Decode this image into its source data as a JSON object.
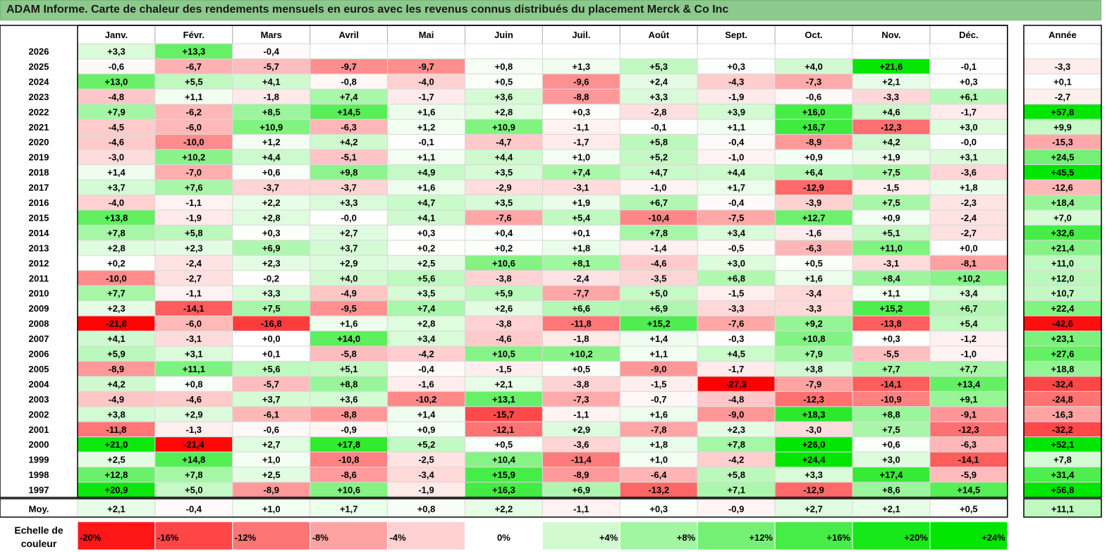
{
  "title": "ADAM Informe. Carte de chaleur des rendements mensuels en euros avec les revenus connus distribués du placement Merck & Co Inc",
  "chart_data": {
    "type": "heatmap",
    "title": "ADAM Informe. Carte de chaleur des rendements mensuels en euros avec les revenus connus distribués du placement Merck & Co Inc",
    "columns": [
      "Janv.",
      "Févr.",
      "Mars",
      "Avril",
      "Mai",
      "Juin",
      "Juil.",
      "Août",
      "Sept.",
      "Oct.",
      "Nov.",
      "Déc."
    ],
    "year_column_label": "Année",
    "rows": [
      {
        "label": "2026",
        "values": [
          "+3,3",
          "+13,3",
          "-0,4",
          "",
          "",
          "",
          "",
          "",
          "",
          "",
          "",
          ""
        ],
        "year": ""
      },
      {
        "label": "2025",
        "values": [
          "-0,6",
          "-6,7",
          "-5,7",
          "-9,7",
          "-9,7",
          "+0,8",
          "+1,3",
          "+5,3",
          "+0,3",
          "+4,0",
          "+21,6",
          "-0,1"
        ],
        "year": "-3,3"
      },
      {
        "label": "2024",
        "values": [
          "+13,0",
          "+5,5",
          "+4,1",
          "-0,8",
          "-4,0",
          "+0,5",
          "-9,6",
          "+2,4",
          "-4,3",
          "-7,3",
          "+2,1",
          "+0,3"
        ],
        "year": "+0,1"
      },
      {
        "label": "2023",
        "values": [
          "-4,8",
          "+1,1",
          "-1,8",
          "+7,4",
          "-1,7",
          "+3,6",
          "-8,8",
          "+3,3",
          "-1,9",
          "-0,6",
          "-3,3",
          "+6,1"
        ],
        "year": "-2,7"
      },
      {
        "label": "2022",
        "values": [
          "+7,9",
          "-6,2",
          "+8,5",
          "+14,5",
          "+1,6",
          "+2,8",
          "+0,3",
          "-2,8",
          "+3,9",
          "+16,0",
          "+4,6",
          "-1,7"
        ],
        "year": "+57,8"
      },
      {
        "label": "2021",
        "values": [
          "-4,5",
          "-6,0",
          "+10,9",
          "-6,3",
          "+1,2",
          "+10,9",
          "-1,1",
          "-0,1",
          "+1,1",
          "+16,7",
          "-12,3",
          "+3,0"
        ],
        "year": "+9,9"
      },
      {
        "label": "2020",
        "values": [
          "-4,6",
          "-10,0",
          "+1,2",
          "+4,2",
          "-0,1",
          "-4,7",
          "-1,7",
          "+5,8",
          "-0,4",
          "-8,9",
          "+4,2",
          "-0,0"
        ],
        "year": "-15,3"
      },
      {
        "label": "2019",
        "values": [
          "-3,0",
          "+10,2",
          "+4,4",
          "-5,1",
          "+1,1",
          "+4,4",
          "+1,0",
          "+5,2",
          "-1,0",
          "+0,9",
          "+1,9",
          "+3,1"
        ],
        "year": "+24,5"
      },
      {
        "label": "2018",
        "values": [
          "+1,4",
          "-7,0",
          "+0,6",
          "+9,8",
          "+4,9",
          "+3,5",
          "+7,4",
          "+4,7",
          "+4,4",
          "+6,4",
          "+7,5",
          "-3,6"
        ],
        "year": "+45,5"
      },
      {
        "label": "2017",
        "values": [
          "+3,7",
          "+7,6",
          "-3,7",
          "-3,7",
          "+1,6",
          "-2,9",
          "-3,1",
          "-1,0",
          "+1,7",
          "-12,9",
          "-1,5",
          "+1,8"
        ],
        "year": "-12,6"
      },
      {
        "label": "2016",
        "values": [
          "-4,0",
          "-1,1",
          "+2,2",
          "+3,3",
          "+4,7",
          "+3,5",
          "+1,9",
          "+6,7",
          "-0,4",
          "-3,9",
          "+7,5",
          "-2,3"
        ],
        "year": "+18,4"
      },
      {
        "label": "2015",
        "values": [
          "+13,8",
          "-1,9",
          "+2,8",
          "-0,0",
          "+4,1",
          "-7,6",
          "+5,4",
          "-10,4",
          "-7,5",
          "+12,7",
          "+0,9",
          "-2,4"
        ],
        "year": "+7,0"
      },
      {
        "label": "2014",
        "values": [
          "+7,8",
          "+5,8",
          "+0,3",
          "+2,7",
          "+0,3",
          "+0,4",
          "+0,1",
          "+7,8",
          "+3,4",
          "-1,6",
          "+5,1",
          "-2,7"
        ],
        "year": "+32,6"
      },
      {
        "label": "2013",
        "values": [
          "+2,8",
          "+2,3",
          "+6,9",
          "+3,7",
          "+0,2",
          "+0,2",
          "+1,8",
          "-1,4",
          "-0,5",
          "-6,3",
          "+11,0",
          "+0,0"
        ],
        "year": "+21,4"
      },
      {
        "label": "2012",
        "values": [
          "+0,2",
          "-2,4",
          "+2,3",
          "+2,9",
          "+2,5",
          "+10,6",
          "+8,1",
          "-4,6",
          "+3,0",
          "+0,5",
          "-3,1",
          "-8,1"
        ],
        "year": "+11,0"
      },
      {
        "label": "2011",
        "values": [
          "-10,0",
          "-2,7",
          "-0,2",
          "+4,0",
          "+5,6",
          "-3,8",
          "-2,4",
          "-3,5",
          "+6,8",
          "+1,6",
          "+8,4",
          "+10,2"
        ],
        "year": "+12,0"
      },
      {
        "label": "2010",
        "values": [
          "+7,7",
          "-1,1",
          "+3,3",
          "-4,9",
          "+3,5",
          "+5,9",
          "-7,7",
          "+5,0",
          "-1,5",
          "-3,4",
          "+1,1",
          "+3,4"
        ],
        "year": "+10,7"
      },
      {
        "label": "2009",
        "values": [
          "+2,3",
          "-14,1",
          "+7,5",
          "-9,5",
          "+7,4",
          "+2,6",
          "+6,6",
          "+6,9",
          "-3,3",
          "-3,3",
          "+15,2",
          "+6,7"
        ],
        "year": "+22,4"
      },
      {
        "label": "2008",
        "values": [
          "-21,8",
          "-6,0",
          "-16,8",
          "+1,6",
          "+2,8",
          "-3,8",
          "-11,8",
          "+15,2",
          "-7,6",
          "+9,2",
          "-13,8",
          "+5,4"
        ],
        "year": "-42,6"
      },
      {
        "label": "2007",
        "values": [
          "+4,1",
          "-3,1",
          "+0,0",
          "+14,0",
          "+3,4",
          "-4,6",
          "-1,8",
          "+1,4",
          "-0,3",
          "+10,8",
          "+0,3",
          "-1,2"
        ],
        "year": "+23,1"
      },
      {
        "label": "2006",
        "values": [
          "+5,9",
          "+3,1",
          "+0,1",
          "-5,8",
          "-4,2",
          "+10,5",
          "+10,2",
          "+1,1",
          "+4,5",
          "+7,9",
          "-5,5",
          "-1,0"
        ],
        "year": "+27,6"
      },
      {
        "label": "2005",
        "values": [
          "-8,9",
          "+11,1",
          "+5,6",
          "+5,1",
          "-0,4",
          "-1,5",
          "+0,5",
          "-9,0",
          "-1,7",
          "+3,8",
          "+7,7",
          "+7,7"
        ],
        "year": "+18,8"
      },
      {
        "label": "2004",
        "values": [
          "+4,2",
          "+0,8",
          "-5,7",
          "+8,8",
          "-1,6",
          "+2,1",
          "-3,8",
          "-1,5",
          "-27,3",
          "-7,9",
          "-14,1",
          "+13,4"
        ],
        "year": "-32,4"
      },
      {
        "label": "2003",
        "values": [
          "-4,9",
          "-4,6",
          "+3,7",
          "+3,6",
          "-10,2",
          "+13,1",
          "-7,3",
          "-0,7",
          "-4,8",
          "-12,3",
          "-10,9",
          "+9,1"
        ],
        "year": "-24,8"
      },
      {
        "label": "2002",
        "values": [
          "+3,8",
          "+2,9",
          "-6,1",
          "-8,8",
          "+1,4",
          "-15,7",
          "-1,1",
          "+1,6",
          "-9,0",
          "+18,3",
          "+8,8",
          "-9,1"
        ],
        "year": "-16,3"
      },
      {
        "label": "2001",
        "values": [
          "-11,8",
          "-1,3",
          "-0,6",
          "-0,9",
          "+0,9",
          "-12,1",
          "+2,9",
          "-7,8",
          "+2,3",
          "-3,0",
          "+7,5",
          "-12,3"
        ],
        "year": "-32,2"
      },
      {
        "label": "2000",
        "values": [
          "+21,0",
          "-21,4",
          "+2,7",
          "+17,8",
          "+5,2",
          "+0,5",
          "-3,6",
          "+1,8",
          "+7,8",
          "+26,0",
          "+0,6",
          "-6,3"
        ],
        "year": "+52,1"
      },
      {
        "label": "1999",
        "values": [
          "+2,5",
          "+14,8",
          "+1,0",
          "-10,8",
          "-2,5",
          "+10,4",
          "-11,4",
          "+1,0",
          "-4,2",
          "+24,4",
          "+3,0",
          "-14,1"
        ],
        "year": "+7,8"
      },
      {
        "label": "1998",
        "values": [
          "+12,8",
          "+7,8",
          "+2,5",
          "-8,6",
          "-3,4",
          "+15,9",
          "-8,9",
          "-6,4",
          "+5,8",
          "+3,3",
          "+17,4",
          "-5,9"
        ],
        "year": "+31,4"
      },
      {
        "label": "1997",
        "values": [
          "+20,9",
          "+5,0",
          "-8,9",
          "+10,6",
          "-1,9",
          "+16,3",
          "+6,9",
          "-13,2",
          "+7,1",
          "-12,9",
          "+8,6",
          "+14,5"
        ],
        "year": "+56,8"
      }
    ],
    "average_row": {
      "label": "Moy.",
      "values": [
        "+2,1",
        "-0,4",
        "+1,0",
        "+1,7",
        "+0,8",
        "+2,2",
        "-1,1",
        "+0,3",
        "-0,9",
        "+2,7",
        "+2,1",
        "+0,5"
      ],
      "year": "+11,1"
    },
    "color_scale": {
      "label_line1": "Echelle de",
      "label_line2": "couleur",
      "stops": [
        {
          "label": "-20%",
          "value": -20
        },
        {
          "label": "-16%",
          "value": -16
        },
        {
          "label": "-12%",
          "value": -12
        },
        {
          "label": "-8%",
          "value": -8
        },
        {
          "label": "-4%",
          "value": -4
        },
        {
          "label": "0%",
          "value": 0
        },
        {
          "label": "+4%",
          "value": 4
        },
        {
          "label": "+8%",
          "value": 8
        },
        {
          "label": "+12%",
          "value": 12
        },
        {
          "label": "+16%",
          "value": 16
        },
        {
          "label": "+20%",
          "value": 20
        },
        {
          "label": "+24%",
          "value": 24
        }
      ]
    }
  },
  "colors": {
    "title_bg": "#8cc98c",
    "max_red": "#ff0000",
    "max_green": "#00e000",
    "neutral": "#ffffff"
  }
}
